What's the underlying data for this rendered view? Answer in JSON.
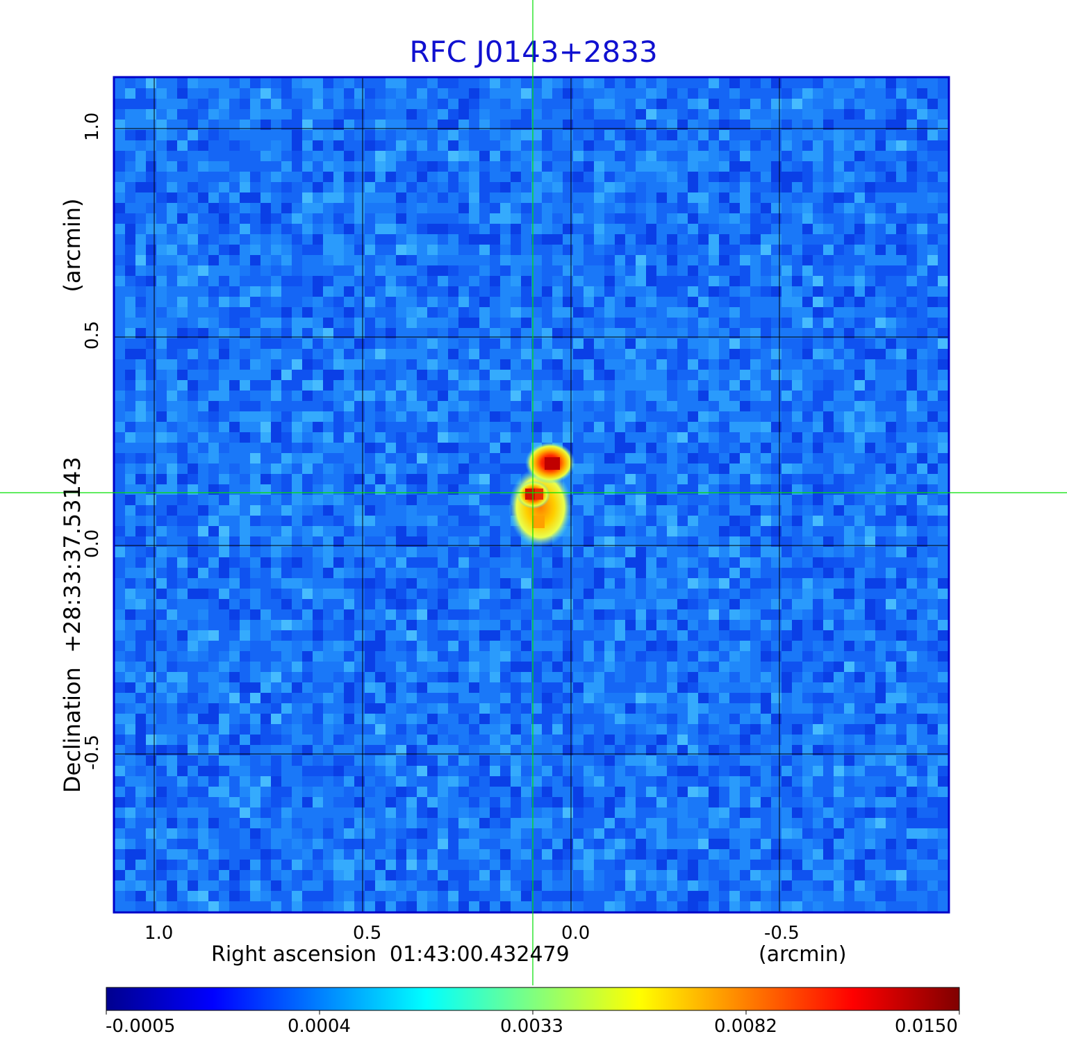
{
  "title": "RFC J0143+2833",
  "xaxis": {
    "label": "Right ascension  01:43:00.432479",
    "unit": "(arcmin)",
    "ticks": [
      "1.0",
      "0.5",
      "0.0",
      "-0.5"
    ]
  },
  "yaxis": {
    "label": "Declination  +28:33:37.53143",
    "unit": "(arcmin)",
    "ticks": [
      "1.0",
      "0.5",
      "0.0",
      "-0.5"
    ]
  },
  "colorbar": {
    "ticks": [
      "-0.0005",
      "0.0004",
      "0.0033",
      "0.0082",
      "0.0150"
    ],
    "colormap": "jet"
  },
  "colors": {
    "title": "#1010d0",
    "frame": "#0000c8",
    "crosshair": "#00e000",
    "grid": "#000000"
  },
  "image": {
    "description_type": "radio intensity map",
    "crosshair": true
  }
}
